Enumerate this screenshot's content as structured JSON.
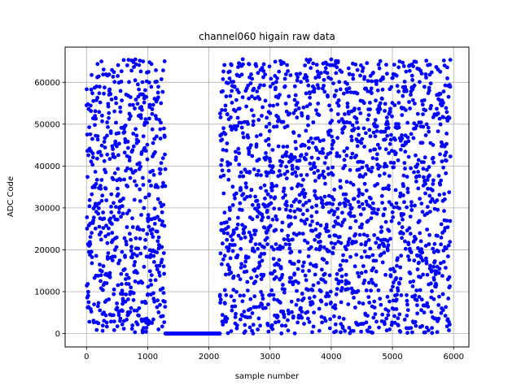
{
  "chart_data": {
    "type": "scatter",
    "title": "channel060 higain raw data",
    "xlabel": "sample number",
    "ylabel": "ADC Code",
    "xlim": [
      -350,
      6250
    ],
    "ylim": [
      -3200,
      68400
    ],
    "xticks": [
      0,
      1000,
      2000,
      3000,
      4000,
      5000,
      6000
    ],
    "yticks": [
      0,
      10000,
      20000,
      30000,
      40000,
      50000,
      60000
    ],
    "grid": true,
    "marker_color": "#0000ff",
    "series": [
      {
        "segments": [
          {
            "x_start": 0,
            "x_end": 1290,
            "behavior": "uniform-random",
            "y_min": 0,
            "y_max": 65535
          },
          {
            "x_start": 1290,
            "x_end": 2180,
            "behavior": "constant",
            "y": 0
          },
          {
            "x_start": 2180,
            "x_end": 5950,
            "behavior": "uniform-random",
            "y_min": 0,
            "y_max": 65535
          }
        ]
      }
    ]
  }
}
